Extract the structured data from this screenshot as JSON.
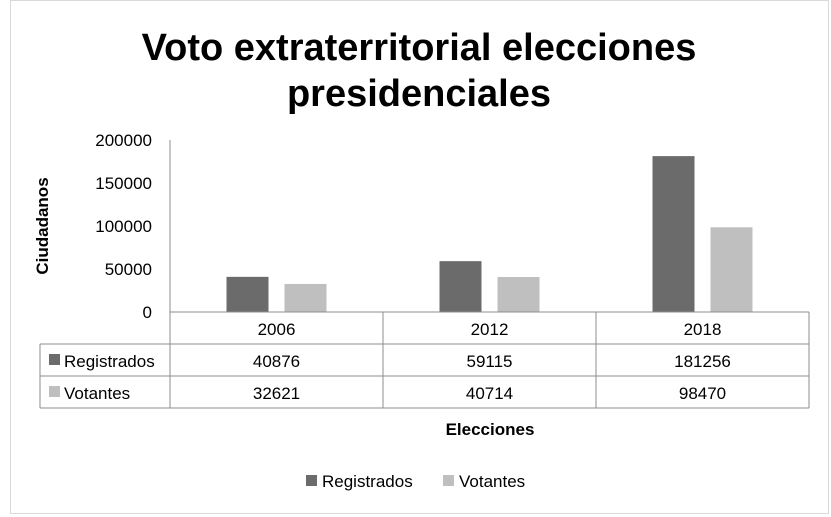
{
  "chart_data": {
    "type": "bar",
    "title_lines": [
      "Voto extraterritorial elecciones",
      "presidenciales"
    ],
    "xlabel": "Elecciones",
    "ylabel": "Ciudadanos",
    "ylim": [
      0,
      200000
    ],
    "yticks": [
      "0",
      "50000",
      "100000",
      "150000",
      "200000"
    ],
    "categories": [
      "2006",
      "2012",
      "2018"
    ],
    "series": [
      {
        "name": "Registrados",
        "values": [
          40876,
          59115,
          181256
        ],
        "labels": [
          "40876",
          "59115",
          "181256"
        ],
        "color": "#6b6b6b"
      },
      {
        "name": "Votantes",
        "values": [
          32621,
          40714,
          98470
        ],
        "labels": [
          "32621",
          "40714",
          "98470"
        ],
        "color": "#bfbfbf"
      }
    ],
    "data_table": true,
    "legend_position": "bottom",
    "grid": false
  }
}
